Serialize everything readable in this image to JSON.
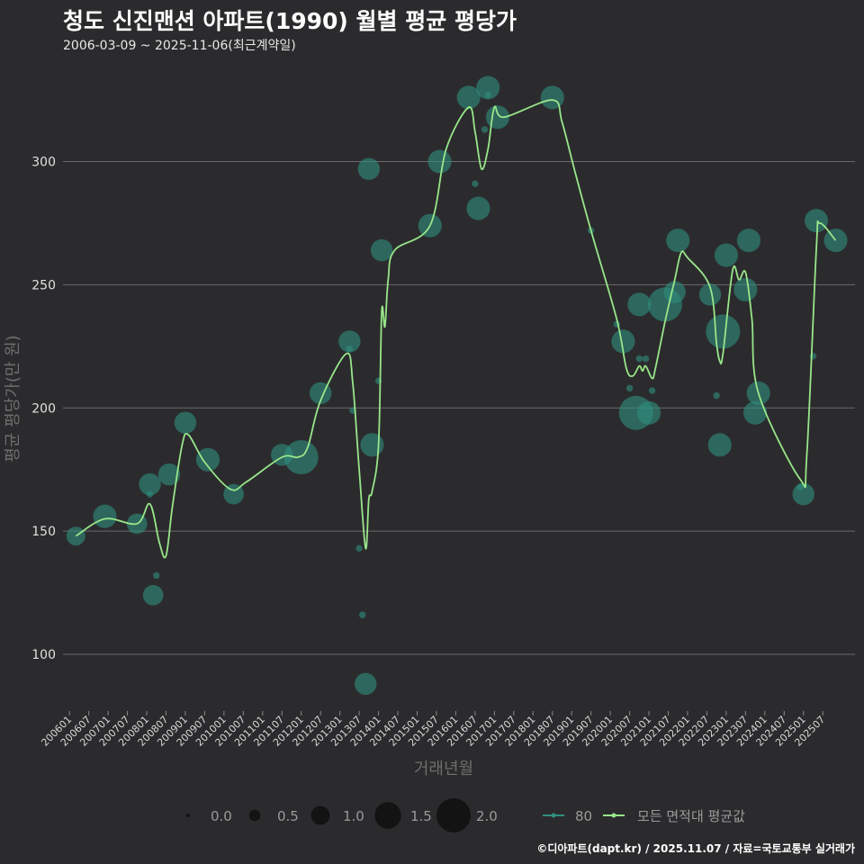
{
  "header": {
    "title": "청도 신진맨션 아파트(1990) 월별 평균 평당가",
    "subtitle": "2006-03-09 ~ 2025-11-06(최근계약일)"
  },
  "footer": {
    "credit": "©디아파트(dapt.kr) / 2025.11.07 / 자료=국토교통부 실거래가"
  },
  "colors": {
    "background": "#2b2b2d",
    "grid": "#6a6a6a",
    "point": "#2f8f7f",
    "line": "#98e68a"
  },
  "chart_data": {
    "type": "scatter",
    "title": "청도 신진맨션 아파트(1990) 월별 평균 평당가",
    "xlabel": "거래년월",
    "ylabel": "평균 평당가(만 원)",
    "ylim": [
      77,
      340
    ],
    "y_ticks": [
      100,
      150,
      200,
      250,
      300
    ],
    "x_range": [
      "2005-11",
      "2026-05"
    ],
    "x_ticks": [
      "200601",
      "200607",
      "200701",
      "200707",
      "200801",
      "200807",
      "200901",
      "200907",
      "201001",
      "201007",
      "201101",
      "201107",
      "201201",
      "201207",
      "201301",
      "201307",
      "201401",
      "201407",
      "201501",
      "201507",
      "201601",
      "201607",
      "201701",
      "201707",
      "201801",
      "201807",
      "201901",
      "201907",
      "202001",
      "202007",
      "202101",
      "202107",
      "202201",
      "202207",
      "202301",
      "202307",
      "202401",
      "202407",
      "202501",
      "202507"
    ],
    "size_legend": {
      "title": "",
      "values": [
        "0.0",
        "0.5",
        "1.0",
        "1.5",
        "2.0"
      ]
    },
    "series": [
      {
        "name": "80",
        "kind": "points",
        "points": [
          {
            "x": "2006-03",
            "y": 148,
            "size": 1.0
          },
          {
            "x": "2006-12",
            "y": 156,
            "size": 1.3
          },
          {
            "x": "2007-10",
            "y": 153,
            "size": 1.1
          },
          {
            "x": "2008-02",
            "y": 169,
            "size": 1.2
          },
          {
            "x": "2008-02",
            "y": 165,
            "size": 0.2
          },
          {
            "x": "2008-03",
            "y": 124,
            "size": 1.1
          },
          {
            "x": "2008-04",
            "y": 132,
            "size": 0.2
          },
          {
            "x": "2008-08",
            "y": 173,
            "size": 1.2
          },
          {
            "x": "2009-01",
            "y": 194,
            "size": 1.2
          },
          {
            "x": "2009-08",
            "y": 179,
            "size": 1.3
          },
          {
            "x": "2010-04",
            "y": 165,
            "size": 1.1
          },
          {
            "x": "2011-07",
            "y": 181,
            "size": 1.2
          },
          {
            "x": "2012-01",
            "y": 180,
            "size": 2.0
          },
          {
            "x": "2012-07",
            "y": 206,
            "size": 1.2
          },
          {
            "x": "2013-04",
            "y": 227,
            "size": 1.2
          },
          {
            "x": "2013-04",
            "y": 224,
            "size": 0.2
          },
          {
            "x": "2013-05",
            "y": 199,
            "size": 0.2
          },
          {
            "x": "2013-07",
            "y": 143,
            "size": 0.2
          },
          {
            "x": "2013-08",
            "y": 116,
            "size": 0.2
          },
          {
            "x": "2013-09",
            "y": 88,
            "size": 1.2
          },
          {
            "x": "2013-10",
            "y": 297,
            "size": 1.2
          },
          {
            "x": "2013-11",
            "y": 185,
            "size": 1.3
          },
          {
            "x": "2014-01",
            "y": 211,
            "size": 0.2
          },
          {
            "x": "2014-02",
            "y": 264,
            "size": 1.2
          },
          {
            "x": "2015-05",
            "y": 274,
            "size": 1.3
          },
          {
            "x": "2015-08",
            "y": 300,
            "size": 1.3
          },
          {
            "x": "2016-05",
            "y": 326,
            "size": 1.3
          },
          {
            "x": "2016-07",
            "y": 291,
            "size": 0.2
          },
          {
            "x": "2016-08",
            "y": 281,
            "size": 1.3
          },
          {
            "x": "2016-10",
            "y": 313,
            "size": 0.2
          },
          {
            "x": "2016-11",
            "y": 330,
            "size": 1.3
          },
          {
            "x": "2016-11",
            "y": 327,
            "size": 0.2
          },
          {
            "x": "2017-02",
            "y": 318,
            "size": 1.3
          },
          {
            "x": "2018-07",
            "y": 326,
            "size": 1.3
          },
          {
            "x": "2019-07",
            "y": 272,
            "size": 0.2
          },
          {
            "x": "2020-03",
            "y": 234,
            "size": 0.2
          },
          {
            "x": "2020-05",
            "y": 227,
            "size": 1.3
          },
          {
            "x": "2020-07",
            "y": 208,
            "size": 0.2
          },
          {
            "x": "2020-09",
            "y": 198,
            "size": 2.0
          },
          {
            "x": "2020-10",
            "y": 242,
            "size": 1.3
          },
          {
            "x": "2020-10",
            "y": 220,
            "size": 0.2
          },
          {
            "x": "2020-12",
            "y": 220,
            "size": 0.2
          },
          {
            "x": "2021-01",
            "y": 198,
            "size": 1.3
          },
          {
            "x": "2021-02",
            "y": 207,
            "size": 0.2
          },
          {
            "x": "2021-06",
            "y": 242,
            "size": 2.0
          },
          {
            "x": "2021-09",
            "y": 247,
            "size": 1.2
          },
          {
            "x": "2021-10",
            "y": 268,
            "size": 1.3
          },
          {
            "x": "2022-08",
            "y": 246,
            "size": 1.2
          },
          {
            "x": "2022-10",
            "y": 205,
            "size": 0.2
          },
          {
            "x": "2022-11",
            "y": 185,
            "size": 1.3
          },
          {
            "x": "2022-12",
            "y": 231,
            "size": 2.0
          },
          {
            "x": "2023-01",
            "y": 262,
            "size": 1.3
          },
          {
            "x": "2023-07",
            "y": 248,
            "size": 1.3
          },
          {
            "x": "2023-08",
            "y": 268,
            "size": 1.3
          },
          {
            "x": "2023-10",
            "y": 198,
            "size": 1.3
          },
          {
            "x": "2023-11",
            "y": 206,
            "size": 1.3
          },
          {
            "x": "2024-12",
            "y": 168,
            "size": 0.2
          },
          {
            "x": "2025-01",
            "y": 165,
            "size": 1.2
          },
          {
            "x": "2025-04",
            "y": 221,
            "size": 0.2
          },
          {
            "x": "2025-05",
            "y": 276,
            "size": 1.3
          },
          {
            "x": "2025-11",
            "y": 268,
            "size": 1.3
          }
        ]
      },
      {
        "name": "모든 면적대 평균값",
        "kind": "line",
        "points": [
          {
            "x": "2006-03",
            "y": 148
          },
          {
            "x": "2006-12",
            "y": 155
          },
          {
            "x": "2007-10",
            "y": 153
          },
          {
            "x": "2008-02",
            "y": 161
          },
          {
            "x": "2008-05",
            "y": 145
          },
          {
            "x": "2008-07",
            "y": 140
          },
          {
            "x": "2008-09",
            "y": 160
          },
          {
            "x": "2008-12",
            "y": 185
          },
          {
            "x": "2009-02",
            "y": 189
          },
          {
            "x": "2009-07",
            "y": 178
          },
          {
            "x": "2010-03",
            "y": 167
          },
          {
            "x": "2010-08",
            "y": 170
          },
          {
            "x": "2011-07",
            "y": 180
          },
          {
            "x": "2011-12",
            "y": 180
          },
          {
            "x": "2012-03",
            "y": 184
          },
          {
            "x": "2012-07",
            "y": 203
          },
          {
            "x": "2013-03",
            "y": 222
          },
          {
            "x": "2013-05",
            "y": 210
          },
          {
            "x": "2013-07",
            "y": 175
          },
          {
            "x": "2013-09",
            "y": 143
          },
          {
            "x": "2013-10",
            "y": 163
          },
          {
            "x": "2013-11",
            "y": 166
          },
          {
            "x": "2014-01",
            "y": 185
          },
          {
            "x": "2014-02",
            "y": 239
          },
          {
            "x": "2014-03",
            "y": 233
          },
          {
            "x": "2014-04",
            "y": 252
          },
          {
            "x": "2014-06",
            "y": 264
          },
          {
            "x": "2015-05",
            "y": 274
          },
          {
            "x": "2015-10",
            "y": 305
          },
          {
            "x": "2016-05",
            "y": 322
          },
          {
            "x": "2016-07",
            "y": 312
          },
          {
            "x": "2016-09",
            "y": 297
          },
          {
            "x": "2016-11",
            "y": 305
          },
          {
            "x": "2017-01",
            "y": 322
          },
          {
            "x": "2017-04",
            "y": 318
          },
          {
            "x": "2018-07",
            "y": 325
          },
          {
            "x": "2018-10",
            "y": 316
          },
          {
            "x": "2019-02",
            "y": 296
          },
          {
            "x": "2019-07",
            "y": 272
          },
          {
            "x": "2020-03",
            "y": 236
          },
          {
            "x": "2020-06",
            "y": 216
          },
          {
            "x": "2020-08",
            "y": 213
          },
          {
            "x": "2020-10",
            "y": 217
          },
          {
            "x": "2020-11",
            "y": 215
          },
          {
            "x": "2020-12",
            "y": 217
          },
          {
            "x": "2021-02",
            "y": 212
          },
          {
            "x": "2021-03",
            "y": 216
          },
          {
            "x": "2021-06",
            "y": 235
          },
          {
            "x": "2021-09",
            "y": 252
          },
          {
            "x": "2021-11",
            "y": 263
          },
          {
            "x": "2022-01",
            "y": 261
          },
          {
            "x": "2022-08",
            "y": 249
          },
          {
            "x": "2022-10",
            "y": 226
          },
          {
            "x": "2022-11",
            "y": 219
          },
          {
            "x": "2022-12",
            "y": 222
          },
          {
            "x": "2023-03",
            "y": 256
          },
          {
            "x": "2023-05",
            "y": 252
          },
          {
            "x": "2023-07",
            "y": 255
          },
          {
            "x": "2023-09",
            "y": 236
          },
          {
            "x": "2023-11",
            "y": 206
          },
          {
            "x": "2024-12",
            "y": 171
          },
          {
            "x": "2025-02",
            "y": 180
          },
          {
            "x": "2025-05",
            "y": 265
          },
          {
            "x": "2025-06",
            "y": 275
          },
          {
            "x": "2025-11",
            "y": 268
          }
        ]
      }
    ]
  }
}
